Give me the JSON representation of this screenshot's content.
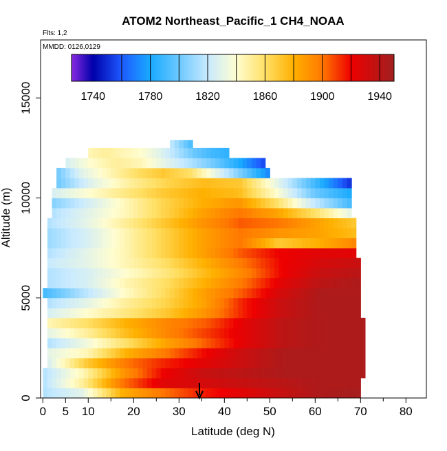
{
  "chart_data": {
    "type": "heatmap",
    "title": "ATOM2 Northeast_Pacific_1 CH4_NOAA",
    "flights_label": "Flts: 1,2",
    "dates_label": "MMDD: 0126,0129",
    "xlabel": "Latitude (deg N)",
    "ylabel": "Altitude (m)",
    "xlim": [
      -0.5,
      84.5
    ],
    "ylim": [
      0,
      17900
    ],
    "x_ticks": [
      0,
      5,
      10,
      20,
      30,
      40,
      50,
      60,
      70,
      80
    ],
    "y_ticks": [
      0,
      5000,
      10000,
      15000
    ],
    "x_minor_ticks": [
      15,
      25,
      35,
      45,
      55,
      65,
      75,
      85
    ],
    "arrow_x": 34.5,
    "colorbar": {
      "min": 1725,
      "max": 1950,
      "ticks": [
        1740,
        1780,
        1820,
        1860,
        1900,
        1940
      ],
      "boundaries": [
        1760,
        1780,
        1800,
        1820,
        1840,
        1860,
        1880,
        1900,
        1920,
        1940
      ],
      "color_stops": [
        {
          "value": 1725,
          "color": "#8a2be2"
        },
        {
          "value": 1740,
          "color": "#0000aa"
        },
        {
          "value": 1760,
          "color": "#1e5aff"
        },
        {
          "value": 1780,
          "color": "#19aaff"
        },
        {
          "value": 1800,
          "color": "#6cc8ff"
        },
        {
          "value": 1820,
          "color": "#c8eaff"
        },
        {
          "value": 1840,
          "color": "#fffdd0"
        },
        {
          "value": 1860,
          "color": "#ffe066"
        },
        {
          "value": 1880,
          "color": "#ffb000"
        },
        {
          "value": 1900,
          "color": "#ff7800"
        },
        {
          "value": 1920,
          "color": "#ee0000"
        },
        {
          "value": 1950,
          "color": "#a02020"
        }
      ]
    },
    "layers": [
      {
        "alt": [
          0,
          500
        ],
        "lat": [
          0,
          70
        ],
        "values": [
          1815,
          1830,
          1880,
          1900,
          1915,
          1925,
          1935,
          1945,
          1948
        ]
      },
      {
        "alt": [
          500,
          1000
        ],
        "lat": [
          0,
          70
        ],
        "values": [
          1815,
          1850,
          1900,
          1925,
          1930,
          1935,
          1940,
          1945,
          1945
        ]
      },
      {
        "alt": [
          1000,
          1500
        ],
        "lat": [
          0,
          71
        ],
        "values": [
          1815,
          1845,
          1890,
          1920,
          1935,
          1940,
          1945,
          1945,
          1945
        ]
      },
      {
        "alt": [
          1500,
          2000
        ],
        "lat": [
          1,
          71
        ],
        "values": [
          1825,
          1870,
          1900,
          1915,
          1925,
          1935,
          1945,
          1945,
          1945
        ]
      },
      {
        "alt": [
          2000,
          2500
        ],
        "lat": [
          1,
          71
        ],
        "values": [
          1830,
          1845,
          1880,
          1900,
          1920,
          1935,
          1945,
          1945,
          1945
        ]
      },
      {
        "alt": [
          2500,
          3000
        ],
        "lat": [
          1,
          71
        ],
        "values": [
          1815,
          1835,
          1860,
          1885,
          1905,
          1925,
          1940,
          1945,
          1945
        ]
      },
      {
        "alt": [
          3000,
          3500
        ],
        "lat": [
          1,
          71
        ],
        "values": [
          1830,
          1850,
          1875,
          1895,
          1910,
          1925,
          1940,
          1945,
          1945
        ]
      },
      {
        "alt": [
          3500,
          4000
        ],
        "lat": [
          1,
          71
        ],
        "values": [
          1845,
          1860,
          1880,
          1895,
          1905,
          1925,
          1940,
          1945,
          1945
        ]
      },
      {
        "alt": [
          4000,
          4500
        ],
        "lat": [
          1,
          70
        ],
        "values": [
          1825,
          1840,
          1855,
          1870,
          1890,
          1915,
          1935,
          1945,
          1945
        ]
      },
      {
        "alt": [
          4500,
          5000
        ],
        "lat": [
          1,
          70
        ],
        "values": [
          1815,
          1830,
          1850,
          1865,
          1885,
          1915,
          1935,
          1945,
          1945
        ]
      },
      {
        "alt": [
          5000,
          5500
        ],
        "lat": [
          0,
          70
        ],
        "values": [
          1790,
          1815,
          1840,
          1860,
          1885,
          1905,
          1930,
          1945,
          1945
        ]
      },
      {
        "alt": [
          5500,
          6000
        ],
        "lat": [
          1,
          70
        ],
        "values": [
          1815,
          1825,
          1845,
          1860,
          1880,
          1900,
          1925,
          1940,
          1945
        ]
      },
      {
        "alt": [
          6000,
          6500
        ],
        "lat": [
          1,
          70
        ],
        "values": [
          1815,
          1825,
          1840,
          1855,
          1875,
          1895,
          1920,
          1935,
          1940
        ]
      },
      {
        "alt": [
          6500,
          7000
        ],
        "lat": [
          1,
          70
        ],
        "values": [
          1820,
          1830,
          1845,
          1860,
          1880,
          1900,
          1920,
          1930,
          1935
        ]
      },
      {
        "alt": [
          7000,
          7500
        ],
        "lat": [
          1,
          69
        ],
        "values": [
          1815,
          1830,
          1845,
          1865,
          1885,
          1905,
          1920,
          1925,
          1925
        ]
      },
      {
        "alt": [
          7500,
          8000
        ],
        "lat": [
          1,
          69
        ],
        "values": [
          1810,
          1825,
          1845,
          1865,
          1885,
          1900,
          1870,
          1880,
          1895
        ]
      },
      {
        "alt": [
          8000,
          8500
        ],
        "lat": [
          1,
          69
        ],
        "values": [
          1810,
          1825,
          1845,
          1865,
          1885,
          1900,
          1890,
          1885,
          1875
        ]
      },
      {
        "alt": [
          8500,
          9000
        ],
        "lat": [
          1,
          69
        ],
        "values": [
          1815,
          1830,
          1850,
          1870,
          1890,
          1905,
          1900,
          1885,
          1870
        ]
      },
      {
        "alt": [
          9000,
          9500
        ],
        "lat": [
          2,
          68
        ],
        "values": [
          1815,
          1830,
          1845,
          1865,
          1885,
          1900,
          1885,
          1860,
          1830
        ]
      },
      {
        "alt": [
          9500,
          10000
        ],
        "lat": [
          2,
          68
        ],
        "values": [
          1805,
          1825,
          1845,
          1865,
          1880,
          1890,
          1860,
          1820,
          1790
        ]
      },
      {
        "alt": [
          10000,
          10500
        ],
        "lat": [
          2,
          68
        ],
        "values": [
          1825,
          1840,
          1855,
          1870,
          1880,
          1875,
          1840,
          1800,
          1780
        ]
      },
      {
        "alt": [
          10500,
          11000
        ],
        "lat": [
          3,
          68
        ],
        "values": [
          1800,
          1830,
          1850,
          1865,
          1875,
          1870,
          1830,
          1790,
          1750
        ]
      },
      {
        "alt": [
          11000,
          11500
        ],
        "lat": [
          3,
          50
        ],
        "values": [
          1800,
          1830,
          1845,
          1860,
          1870,
          1860,
          1830,
          1800,
          1770
        ]
      },
      {
        "alt": [
          11500,
          12000
        ],
        "lat": [
          5,
          49
        ],
        "values": [
          1825,
          1840,
          1850,
          1845,
          1830,
          1815,
          1800,
          1780,
          1755
        ]
      },
      {
        "alt": [
          12000,
          12500
        ],
        "lat": [
          10,
          41
        ],
        "values": [
          1845,
          1850,
          1845,
          1840,
          1830,
          1815,
          1800,
          1790,
          1785
        ]
      },
      {
        "alt": [
          12500,
          12900
        ],
        "lat": [
          28,
          33
        ],
        "values": [
          1820,
          1805,
          1790
        ]
      }
    ]
  }
}
